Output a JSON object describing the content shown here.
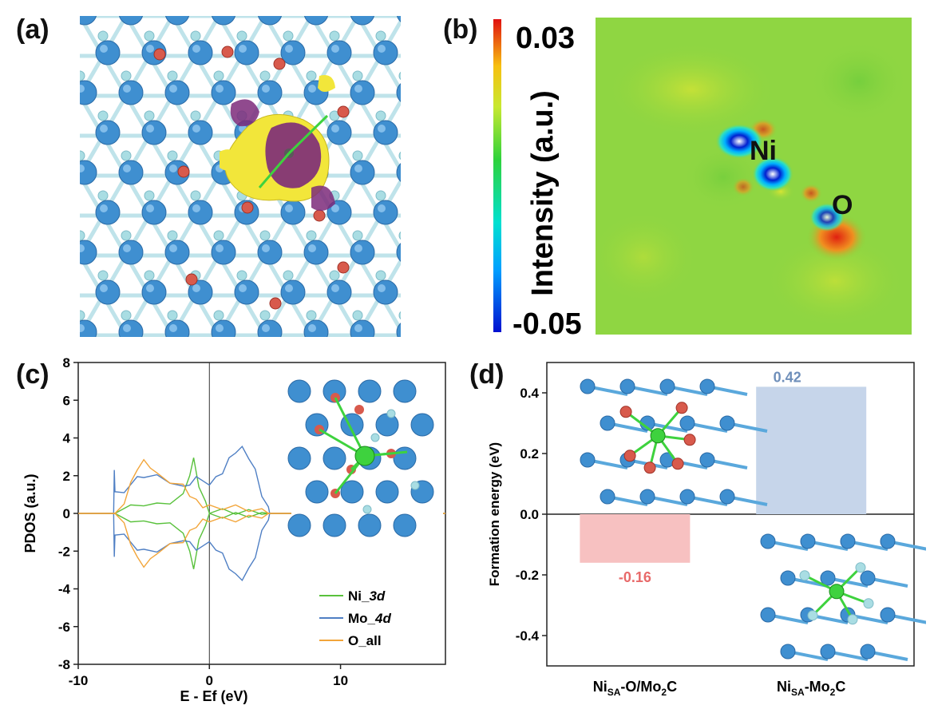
{
  "panels": {
    "a": {
      "letter": "(a)"
    },
    "b": {
      "letter": "(b)",
      "colorbar_max": "0.03",
      "colorbar_min": "-0.05",
      "colorbar_label": "Intensity (a.u.)",
      "label_ni": "Ni",
      "label_o": "O"
    },
    "c": {
      "letter": "(c)"
    },
    "d": {
      "letter": "(d)"
    }
  },
  "colors": {
    "mo_atom": "#3f8fd0",
    "c_atom": "#a9dde3",
    "o_atom": "#d85a4c",
    "ni_atom": "#3ed23e",
    "charge_yellow": "#f2e63a",
    "charge_purple": "#7c2a7a",
    "map_green": "#8ad43f",
    "ni_line": "#59c13c",
    "mo_line": "#4f7fc4",
    "o_line": "#f2a53a",
    "bar_pos": "#c6d5ea",
    "bar_neg": "#f7c1c1",
    "label_pos": "#6f8fba",
    "label_neg": "#e86a6a"
  },
  "chart_data": [
    {
      "type": "line",
      "panel": "c",
      "xlabel": "E - E_f (eV)",
      "ylabel": "PDOS (a.u.)",
      "xlim": [
        -10,
        18
      ],
      "ylim": [
        -8,
        8
      ],
      "xticks": [
        -10,
        0,
        10
      ],
      "yticks": [
        -8,
        -6,
        -4,
        -2,
        0,
        2,
        4,
        6,
        8
      ],
      "vertical_line_at": 0,
      "legend_position": "bottom-right",
      "series": [
        {
          "name": "Ni_3d",
          "color_key": "ni_line",
          "x": [
            -10,
            -7.3,
            -7.2,
            -6,
            -5,
            -4,
            -3,
            -2,
            -1.5,
            -1.2,
            -0.8,
            -0.3,
            0,
            1,
            2,
            3,
            4,
            4.5,
            6,
            18
          ],
          "y": [
            0,
            0,
            0.1,
            0.3,
            0.5,
            0.4,
            0.6,
            0.9,
            2.1,
            2.8,
            1.5,
            0.5,
            0.1,
            0.1,
            0.05,
            0.05,
            0.05,
            0,
            0,
            0
          ]
        },
        {
          "name": "Mo_4d",
          "color_key": "mo_line",
          "x": [
            -10,
            -7.3,
            -7.25,
            -7.2,
            -6.5,
            -5.5,
            -5,
            -4,
            -3,
            -2,
            -1.5,
            -1,
            0,
            0.5,
            1,
            1.5,
            2,
            2.5,
            3,
            3.5,
            4,
            4.5,
            4.6,
            6,
            18
          ],
          "y": [
            0,
            0,
            2.4,
            1.0,
            1.2,
            1.8,
            2.0,
            1.9,
            1.7,
            1.3,
            1.6,
            1.8,
            1.6,
            1.8,
            2.2,
            2.8,
            3.3,
            3.4,
            3.0,
            2.2,
            1.0,
            0.2,
            0,
            0,
            0
          ]
        },
        {
          "name": "O_all",
          "color_key": "o_line",
          "x": [
            -10,
            -7.2,
            -6.5,
            -6,
            -5.5,
            -5,
            -4.5,
            -4,
            -3,
            -2,
            -1.5,
            -1,
            -0.5,
            0,
            1,
            2,
            3,
            4,
            4.5,
            18
          ],
          "y": [
            0,
            0,
            0.6,
            1.5,
            2.4,
            2.7,
            2.5,
            2.0,
            1.7,
            1.4,
            1.0,
            0.6,
            0.4,
            0.3,
            0.3,
            0.3,
            0.2,
            0.1,
            0,
            0
          ]
        }
      ],
      "legend_display": [
        {
          "name": "Ni_",
          "suffix": "3d",
          "color_key": "ni_line"
        },
        {
          "name": "Mo_",
          "suffix": "4d",
          "color_key": "mo_line"
        },
        {
          "name": "O_all",
          "suffix": "",
          "color_key": "o_line"
        }
      ]
    },
    {
      "type": "bar",
      "panel": "d",
      "ylabel": "Formation energy (eV)",
      "ylim": [
        -0.5,
        0.5
      ],
      "yticks": [
        -0.4,
        -0.2,
        0.0,
        0.2,
        0.4
      ],
      "categories": [
        "Ni_SA-O/Mo2C",
        "Ni_SA-Mo2C"
      ],
      "values": [
        -0.16,
        0.42
      ],
      "value_labels": [
        "-0.16",
        "0.42"
      ],
      "category_display": [
        {
          "base": "Ni",
          "sub": "SA",
          "mid": "-O/Mo",
          "sub2": "2",
          "end": "C"
        },
        {
          "base": "Ni",
          "sub": "SA",
          "mid": "-Mo",
          "sub2": "2",
          "end": "C"
        }
      ]
    }
  ]
}
